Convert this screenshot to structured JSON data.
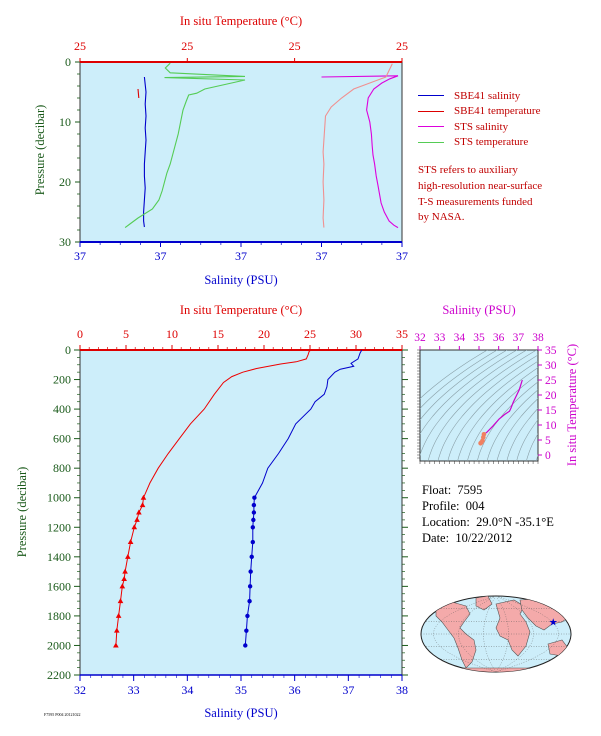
{
  "chart_data": [
    {
      "type": "line",
      "panel": "near-surface",
      "title_top": "In situ Temperature (°C)",
      "xlabel_bottom": "Salinity (PSU)",
      "ylabel": "Pressure (decibar)",
      "top_tick_labels": [
        "25",
        "25",
        "25",
        "25"
      ],
      "bottom_tick_labels": [
        "37",
        "37",
        "37",
        "37",
        "37"
      ],
      "y_ticks": [
        0,
        10,
        20,
        30
      ],
      "ylim": [
        30,
        0
      ],
      "grid": false,
      "series": [
        {
          "name": "SBE41 salinity",
          "color": "#0000cc",
          "x": [
            0.8,
            0.82,
            0.81,
            0.82,
            0.81,
            0.82,
            0.81,
            0.8,
            0.8,
            0.81,
            0.8,
            0.79,
            0.79,
            0.8
          ],
          "y": [
            2.5,
            5,
            7,
            9,
            11,
            13,
            15,
            17,
            19,
            21,
            23,
            25,
            26.5,
            27.5
          ]
        },
        {
          "name": "SBE41 temperature",
          "color": "#dd0000",
          "x": [
            0.72,
            0.73
          ],
          "y": [
            4.5,
            6
          ]
        },
        {
          "name": "STS salinity",
          "color": "#dd00dd",
          "x": [
            3.0,
            3.95,
            3.85,
            3.75,
            3.65,
            3.58,
            3.56,
            3.6,
            3.62,
            3.63,
            3.64,
            3.66,
            3.68,
            3.7,
            3.72,
            3.74,
            3.78,
            3.84,
            3.9,
            3.95
          ],
          "y": [
            2.5,
            2.3,
            2.8,
            3.5,
            4.5,
            6,
            8,
            10,
            12,
            14,
            15.5,
            17,
            19,
            20.5,
            22,
            23.5,
            25,
            26.5,
            27.2,
            27.6
          ]
        },
        {
          "name": "STS temperature",
          "color": "#55cc55",
          "x": [
            1.12,
            1.06,
            1.12,
            2.05,
            1.05,
            2.05,
            1.55,
            1.45,
            1.35,
            1.32,
            1.28,
            1.25,
            1.22,
            1.18,
            1.15,
            1.12,
            1.08,
            1.05,
            1.02,
            0.98,
            0.9,
            0.72,
            0.62,
            0.56
          ],
          "y": [
            0.2,
            1.0,
            1.8,
            2.4,
            2.6,
            3.0,
            4.5,
            5.2,
            5.5,
            6.5,
            8,
            10,
            12,
            14,
            15.5,
            17,
            18.5,
            20,
            21.5,
            23,
            24.5,
            26,
            27,
            27.6
          ]
        },
        {
          "name": "STS temperature (salmon)",
          "color": "#f09090",
          "x": [
            3.88,
            3.8,
            3.6,
            3.4,
            3.25,
            3.12,
            3.05,
            3.04,
            3.03,
            3.02,
            3.03,
            3.02,
            3.03,
            3.02,
            3.03
          ],
          "y": [
            0.3,
            2.5,
            3.5,
            4.5,
            6,
            7.5,
            9,
            11,
            13,
            15,
            17,
            20,
            23,
            26,
            27.6
          ]
        }
      ]
    },
    {
      "type": "line",
      "panel": "full-profile",
      "title_top": "In situ Temperature (°C)",
      "xlabel_bottom": "Salinity (PSU)",
      "ylabel": "Pressure (decibar)",
      "temperature_axis": {
        "min": 0,
        "max": 35,
        "ticks": [
          0,
          5,
          10,
          15,
          20,
          25,
          30,
          35
        ]
      },
      "salinity_axis": {
        "min": 32,
        "max": 38,
        "ticks": [
          32,
          33,
          34,
          35,
          36,
          37,
          38
        ]
      },
      "pressure_axis": {
        "min": 0,
        "max": 2200,
        "ticks": [
          0,
          200,
          400,
          600,
          800,
          1000,
          1200,
          1400,
          1600,
          1800,
          2000,
          2200
        ]
      },
      "grid": false,
      "series": [
        {
          "name": "temperature",
          "color": "#ee0000",
          "pressure": [
            5,
            10,
            30,
            60,
            80,
            95,
            110,
            125,
            150,
            180,
            220,
            300,
            400,
            500,
            600,
            700,
            800,
            900,
            1000,
            1050,
            1100,
            1150,
            1200,
            1300,
            1400,
            1500,
            1550,
            1600,
            1700,
            1800,
            1900,
            2000
          ],
          "values": [
            25.0,
            24.9,
            24.8,
            24.6,
            23.5,
            21.8,
            20.5,
            19.2,
            17.7,
            16.5,
            15.6,
            14.6,
            13.5,
            12.0,
            10.8,
            9.6,
            8.5,
            7.6,
            6.9,
            6.8,
            6.4,
            6.2,
            5.9,
            5.5,
            5.2,
            4.9,
            4.8,
            4.6,
            4.4,
            4.2,
            4.0,
            3.9
          ]
        },
        {
          "name": "salinity",
          "color": "#0000cc",
          "pressure": [
            0,
            20,
            60,
            90,
            110,
            130,
            150,
            200,
            250,
            300,
            350,
            400,
            500,
            600,
            700,
            800,
            900,
            1000,
            1050,
            1100,
            1150,
            1200,
            1300,
            1400,
            1500,
            1600,
            1700,
            1800,
            1900,
            2000
          ],
          "values": [
            37.25,
            37.22,
            37.18,
            37.05,
            37.1,
            36.85,
            36.75,
            36.62,
            36.6,
            36.55,
            36.38,
            36.3,
            36.02,
            35.88,
            35.7,
            35.5,
            35.4,
            35.25,
            35.24,
            35.24,
            35.23,
            35.22,
            35.22,
            35.2,
            35.18,
            35.17,
            35.16,
            35.12,
            35.1,
            35.08
          ]
        }
      ]
    },
    {
      "type": "line",
      "panel": "TS-diagram",
      "title_top": "Salinity (PSU)",
      "ylabel_right": "In situ Temperature (°C)",
      "x_ticks": [
        32,
        33,
        34,
        35,
        36,
        37,
        38
      ],
      "y_ticks": [
        0,
        5,
        10,
        15,
        20,
        25,
        30,
        35
      ],
      "series": [
        {
          "name": "T-S",
          "color": "#cc00cc",
          "x": [
            35.08,
            35.12,
            35.18,
            35.22,
            35.25,
            35.4,
            35.7,
            36.02,
            36.3,
            36.55,
            36.62,
            36.75,
            37.05,
            37.2
          ],
          "y": [
            3.9,
            4.2,
            4.8,
            5.9,
            6.9,
            7.6,
            9.6,
            12.0,
            13.5,
            14.6,
            15.6,
            17.7,
            21.8,
            25.0
          ]
        }
      ]
    },
    {
      "type": "map",
      "panel": "locator-map",
      "marker": {
        "lat": 29.0,
        "lon": -35.1,
        "symbol": "star",
        "color": "#0000cc"
      }
    }
  ],
  "legend": [
    {
      "label": "SBE41 salinity",
      "color": "#0000cc"
    },
    {
      "label": "SBE41 temperature",
      "color": "#dd0000"
    },
    {
      "label": "STS salinity",
      "color": "#dd00dd"
    },
    {
      "label": "STS temperature",
      "color": "#55cc55"
    }
  ],
  "note": [
    "STS refers to auxiliary",
    "high-resolution near-surface",
    "T-S measurements funded",
    "by NASA."
  ],
  "info": {
    "float_label": "Float:",
    "float_value": "7595",
    "profile_label": "Profile:",
    "profile_value": "004",
    "location_label": "Location:",
    "location_value": "29.0°N  -35.1°E",
    "date_label": "Date:",
    "date_value": "10/22/2012"
  },
  "footer_id": "F7595 P004 20121022",
  "colors": {
    "plot_bg": "#cdeefa",
    "temperature_axis": "#dd0000",
    "salinity_axis": "#0000cc",
    "pressure_axis": "#1a5a1a",
    "ts_axis": "#cc00cc"
  }
}
